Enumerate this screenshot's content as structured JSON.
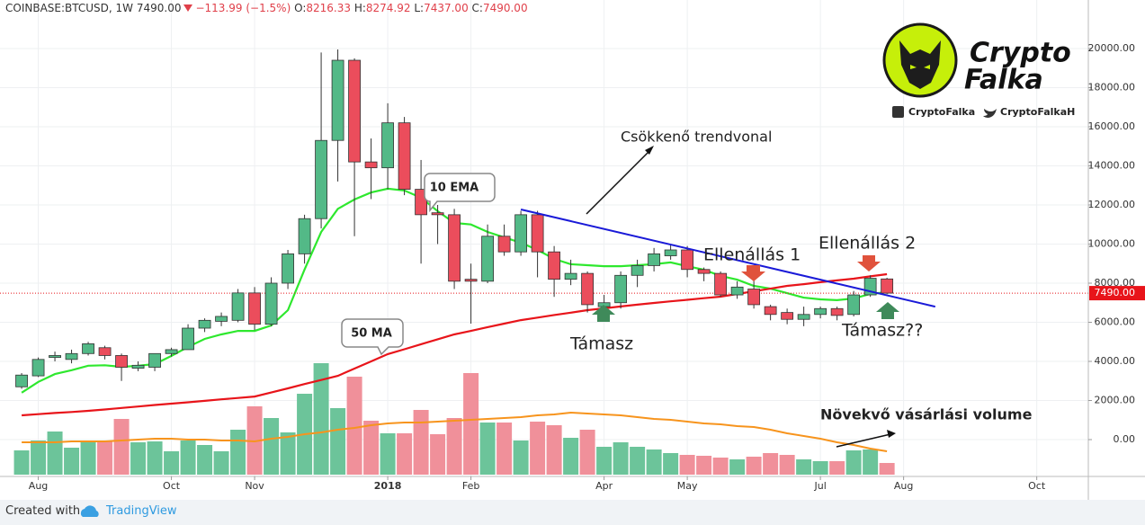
{
  "chart_data": {
    "type": "candlestick",
    "header": {
      "symbol": "COINBASE:BTCUSD, 1W",
      "last": "7490.00",
      "change": "−113.99 (−1.5%)",
      "ohlc": [
        {
          "label": "O:",
          "value": "8216.33"
        },
        {
          "label": "H:",
          "value": "8274.92"
        },
        {
          "label": "L:",
          "value": "7437.00"
        },
        {
          "label": "C:",
          "value": "7490.00"
        }
      ]
    },
    "up_color": "#53b987",
    "down_color": "#eb4d5c",
    "volume_up_color": "#6cc49a",
    "volume_down_color": "#f0909a",
    "open": [
      2700,
      3260,
      4200,
      4100,
      4400,
      4700,
      4300,
      3650,
      3700,
      4400,
      4600,
      5700,
      6050,
      6100,
      7500,
      5900,
      8000,
      9500,
      11300,
      15300,
      19400,
      14200,
      13900,
      16200,
      12800,
      11600,
      11500,
      8200,
      8100,
      10400,
      9600,
      11500,
      9600,
      8200,
      8500,
      6800,
      7000,
      8400,
      8900,
      9400,
      9700,
      8700,
      8500,
      7400,
      7700,
      6800,
      6500,
      6150,
      6400,
      6700,
      6400,
      7400,
      8216.33
    ],
    "high": [
      3400,
      4200,
      4500,
      4600,
      5000,
      4800,
      4400,
      4000,
      4400,
      4700,
      5900,
      6200,
      6500,
      7700,
      7800,
      8300,
      9700,
      11500,
      19800,
      19950,
      19500,
      15400,
      17200,
      16500,
      14300,
      12000,
      11800,
      9000,
      11000,
      11000,
      11700,
      11700,
      9900,
      9200,
      8600,
      7400,
      8600,
      9200,
      9800,
      10000,
      9900,
      8800,
      8600,
      8100,
      8300,
      6900,
      6700,
      6800,
      6800,
      6800,
      7600,
      8400,
      8274.92
    ],
    "low": [
      2600,
      3200,
      4000,
      3900,
      4300,
      4100,
      3000,
      3500,
      3500,
      4250,
      4600,
      5500,
      5800,
      6000,
      5600,
      5800,
      7700,
      9000,
      10800,
      13200,
      10400,
      12300,
      12800,
      12500,
      9000,
      10000,
      7700,
      5930,
      8000,
      9400,
      9400,
      8300,
      7300,
      7900,
      6500,
      6600,
      6700,
      7800,
      8600,
      9200,
      8300,
      8100,
      7300,
      7200,
      6700,
      6100,
      5900,
      5800,
      6200,
      6100,
      6300,
      7300,
      7437
    ],
    "close": [
      3300,
      4100,
      4300,
      4400,
      4900,
      4300,
      3700,
      3800,
      4400,
      4600,
      5700,
      6100,
      6300,
      7500,
      5900,
      8000,
      9500,
      11300,
      15300,
      19400,
      14200,
      13900,
      16200,
      12800,
      11500,
      11500,
      8100,
      8100,
      10400,
      9600,
      11500,
      9600,
      8200,
      8500,
      6900,
      7000,
      8400,
      8900,
      9500,
      9700,
      8700,
      8500,
      7400,
      7800,
      6900,
      6400,
      6150,
      6400,
      6700,
      6350,
      7400,
      8250,
      7490
    ],
    "volume": [
      27,
      38,
      48,
      30,
      37,
      38,
      62,
      36,
      37,
      26,
      38,
      33,
      26,
      50,
      76,
      63,
      47,
      90,
      124,
      74,
      109,
      60,
      46,
      46,
      72,
      45,
      63,
      113,
      58,
      58,
      38,
      59,
      55,
      41,
      50,
      31,
      36,
      31,
      28,
      24,
      22,
      21,
      19,
      17,
      20,
      24,
      22,
      17,
      15,
      15,
      27,
      28,
      13
    ],
    "volume_ma": {
      "color": "#f7941d",
      "values": [
        36,
        36,
        36,
        37,
        37,
        37,
        38,
        39,
        40,
        40,
        39,
        39,
        38,
        38,
        37,
        40,
        42,
        45,
        47,
        50,
        52,
        55,
        57,
        58,
        58,
        59,
        60,
        61,
        62,
        63,
        64,
        66,
        67,
        69,
        68,
        67,
        66,
        64,
        62,
        61,
        59,
        57,
        56,
        54,
        53,
        50,
        46,
        43,
        40,
        36,
        33,
        29,
        26
      ]
    },
    "lines": [
      {
        "name": "10 EMA",
        "color": "#2ee82e",
        "values": [
          2400,
          2950,
          3350,
          3550,
          3780,
          3800,
          3720,
          3780,
          3860,
          4280,
          4740,
          5150,
          5380,
          5560,
          5560,
          5840,
          6620,
          8700,
          10620,
          11800,
          12280,
          12640,
          12830,
          12740,
          12370,
          11680,
          11080,
          11000,
          10620,
          10340,
          10070,
          9700,
          9240,
          8970,
          8920,
          8870,
          8870,
          8920,
          8970,
          9060,
          8870,
          8690,
          8370,
          8180,
          7860,
          7720,
          7490,
          7260,
          7170,
          7130,
          7220,
          7450,
          7540
        ]
      },
      {
        "name": "50 MA",
        "color": "#e8141a",
        "values": [
          1240,
          1300,
          1360,
          1410,
          1470,
          1540,
          1620,
          1690,
          1770,
          1840,
          1910,
          1980,
          2060,
          2130,
          2200,
          2410,
          2620,
          2840,
          3050,
          3260,
          3630,
          4000,
          4370,
          4620,
          4880,
          5130,
          5380,
          5560,
          5750,
          5930,
          6110,
          6240,
          6370,
          6490,
          6620,
          6710,
          6810,
          6900,
          6990,
          7070,
          7150,
          7230,
          7310,
          7450,
          7580,
          7720,
          7860,
          7950,
          8050,
          8140,
          8230,
          8350,
          8460
        ]
      }
    ],
    "trendline": {
      "color": "#1a1ad8",
      "x": [
        30,
        54.9
      ],
      "y": [
        11770,
        6800
      ]
    },
    "last_price": {
      "value": 7490,
      "label": "7490.00",
      "color": "#e8141a"
    },
    "xlim": [
      -1.3,
      64.1
    ],
    "ylim": [
      -1885,
      21470
    ],
    "xticks": [
      {
        "value": 1,
        "label": "Aug"
      },
      {
        "value": 9,
        "label": "Oct"
      },
      {
        "value": 14,
        "label": "Nov"
      },
      {
        "value": 22,
        "label": "2018"
      },
      {
        "value": 27,
        "label": "Feb"
      },
      {
        "value": 35,
        "label": "Apr"
      },
      {
        "value": 40,
        "label": "May"
      },
      {
        "value": 48,
        "label": "Jul"
      },
      {
        "value": 53,
        "label": "Aug"
      },
      {
        "value": 61,
        "label": "Oct"
      }
    ],
    "yticks": [
      {
        "value": 0,
        "label": "0.00"
      },
      {
        "value": 2000,
        "label": "2000.00"
      },
      {
        "value": 4000,
        "label": "4000.00"
      },
      {
        "value": 6000,
        "label": "6000.00"
      },
      {
        "value": 8000,
        "label": "8000.00"
      },
      {
        "value": 10000,
        "label": "10000.00"
      },
      {
        "value": 12000,
        "label": "12000.00"
      },
      {
        "value": 14000,
        "label": "14000.00"
      },
      {
        "value": 16000,
        "label": "16000.00"
      },
      {
        "value": 18000,
        "label": "18000.00"
      },
      {
        "value": 20000,
        "label": "20000.00"
      }
    ],
    "grid": true,
    "annotations": {
      "trend": "Csökkenő trendvonal",
      "resistance1": "Ellenállás 1",
      "resistance2": "Ellenállás 2",
      "support1": "Támasz",
      "support2": "Támasz??",
      "volume": "Növekvő vásárlási volume"
    }
  },
  "branding": {
    "logo_top": "Crypto",
    "logo_bottom": "Falka",
    "facebook": "CryptoFalka",
    "twitter": "CryptoFalkaH"
  },
  "footer": {
    "created": "Created with",
    "brand": "TradingView"
  }
}
